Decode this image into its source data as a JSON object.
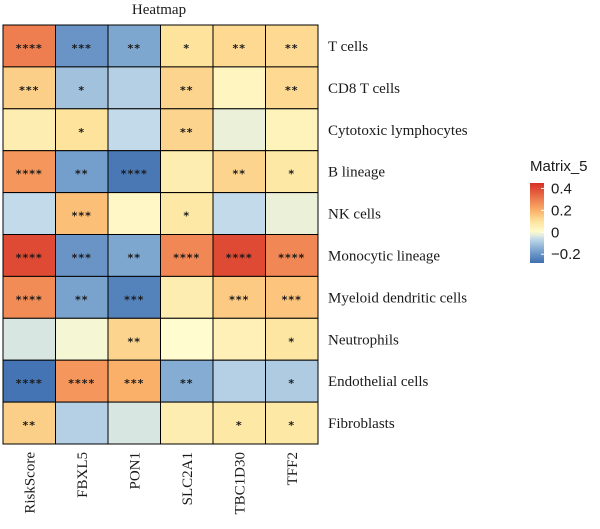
{
  "chart_data": {
    "type": "heatmap",
    "title": "Heatmap",
    "columns": [
      "RiskScore",
      "FBXL5",
      "PON1",
      "SLC2A1",
      "TBC1D30",
      "TFF2"
    ],
    "rows": [
      "T cells",
      "CD8 T cells",
      "Cytotoxic lymphocytes",
      "B lineage",
      "NK cells",
      "Monocytic lineage",
      "Myeloid dendritic cells",
      "Neutrophils",
      "Endothelial cells",
      "Fibroblasts"
    ],
    "values": [
      [
        0.3,
        -0.2,
        -0.16,
        0.1,
        0.12,
        0.12
      ],
      [
        0.14,
        -0.11,
        -0.08,
        0.13,
        0.03,
        0.12
      ],
      [
        0.06,
        0.1,
        -0.06,
        0.13,
        -0.02,
        0.04
      ],
      [
        0.25,
        -0.18,
        -0.26,
        0.06,
        0.13,
        0.08
      ],
      [
        -0.06,
        0.17,
        0.02,
        0.08,
        -0.06,
        -0.02
      ],
      [
        0.4,
        -0.2,
        -0.16,
        0.28,
        0.4,
        0.28
      ],
      [
        0.27,
        -0.17,
        -0.24,
        0.06,
        0.15,
        0.16
      ],
      [
        -0.04,
        -0.01,
        0.13,
        0.0,
        0.05,
        0.09
      ],
      [
        -0.27,
        0.25,
        0.2,
        -0.15,
        -0.08,
        -0.09
      ],
      [
        0.14,
        -0.08,
        -0.04,
        0.06,
        0.08,
        0.08
      ]
    ],
    "significance": [
      [
        "****",
        "***",
        "**",
        "*",
        "**",
        "**"
      ],
      [
        "***",
        "*",
        "",
        "**",
        "",
        "**"
      ],
      [
        "",
        "*",
        "",
        "**",
        "",
        ""
      ],
      [
        "****",
        "**",
        "****",
        "",
        "**",
        "*"
      ],
      [
        "",
        "***",
        "",
        "*",
        "",
        ""
      ],
      [
        "****",
        "***",
        "**",
        "****",
        "****",
        "****"
      ],
      [
        "****",
        "**",
        "***",
        "",
        "***",
        "***"
      ],
      [
        "",
        "",
        "**",
        "",
        "",
        "*"
      ],
      [
        "****",
        "****",
        "***",
        "**",
        "",
        "*"
      ],
      [
        "**",
        "",
        "",
        "",
        "*",
        "*"
      ]
    ],
    "legend": {
      "title": "Matrix_5",
      "ticks": [
        0.4,
        0.2,
        0,
        -0.2
      ],
      "tick_labels": [
        "0.4",
        "0.2",
        "0",
        "−0.2"
      ],
      "range": [
        -0.28,
        0.45
      ],
      "colors": {
        "low": "#4a79b7",
        "mid": "#fffdd0",
        "high": "#d73027"
      }
    }
  }
}
